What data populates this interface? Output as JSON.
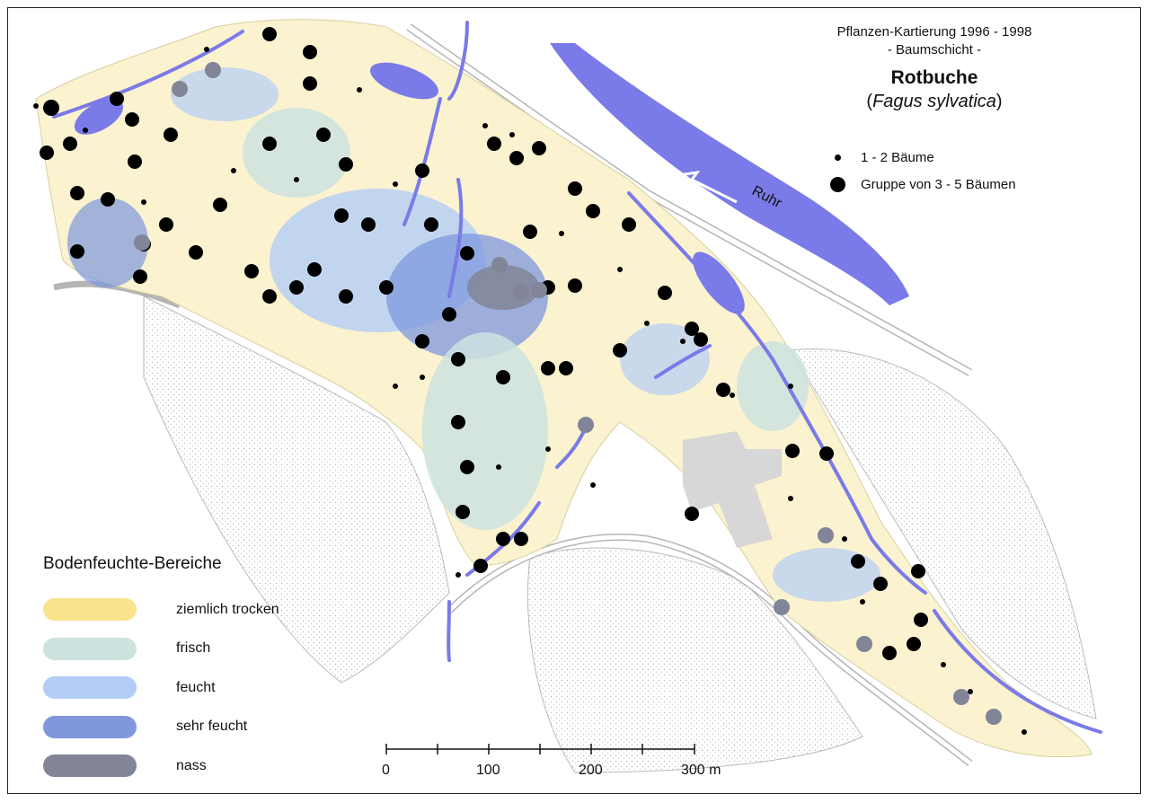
{
  "title": {
    "line1": "Pflanzen-Kartierung 1996 - 1998",
    "line2": "- Baumschicht -",
    "species": "Rotbuche",
    "latin_open": "(",
    "latin": "Fagus sylvatica",
    "latin_close": ")"
  },
  "tree_legend": [
    {
      "label": "1 - 2 Bäume",
      "icon": "small-black-dot"
    },
    {
      "label": "Gruppe von 3 - 5 Bäumen",
      "icon": "large-black-dot"
    }
  ],
  "river_label": "Ruhr",
  "soil_legend": {
    "title": "Bodenfeuchte-Bereiche",
    "items": [
      {
        "label": "ziemlich trocken",
        "color": "#fbe38e"
      },
      {
        "label": "frisch",
        "color": "#cde3e0"
      },
      {
        "label": "feucht",
        "color": "#b3cdf6"
      },
      {
        "label": "sehr feucht",
        "color": "#7e97dd"
      },
      {
        "label": "nass",
        "color": "#818597"
      }
    ]
  },
  "scale_bar": {
    "labels": [
      "0",
      "100",
      "200",
      "300 m"
    ]
  },
  "colors": {
    "water": "#7a7ae8",
    "park_base": "#fbf2cf",
    "building": "#d7d7d7",
    "road_outline": "#b8b8b8",
    "stipple": "#c9c9c9"
  }
}
